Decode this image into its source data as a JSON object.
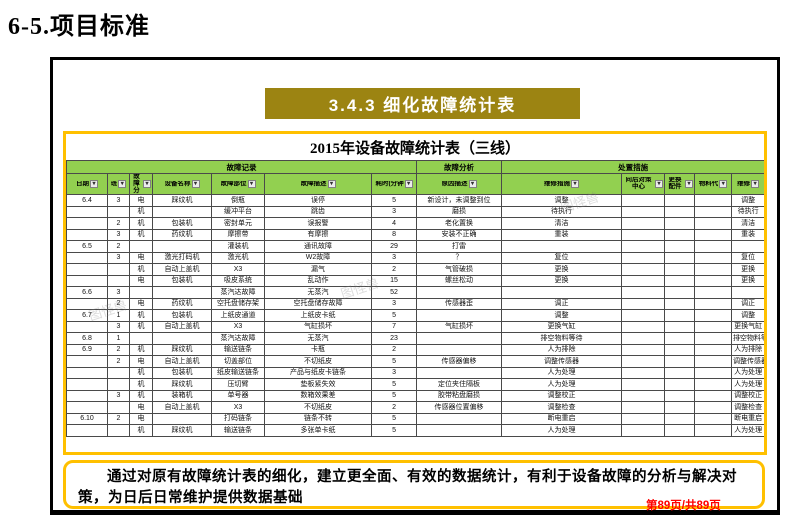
{
  "page": {
    "title": "6-5.项目标准",
    "page_indicator": "第89页/共89页"
  },
  "banner": {
    "label": "3.4.3 细化故障统计表"
  },
  "watermark_text": "图怪兽",
  "colors": {
    "header_green": "#92d050",
    "banner_olive": "#9c8412",
    "gold_border": "#ffc000",
    "page_number_red": "#ff0000"
  },
  "table": {
    "title": "2015年设备故障统计表（三线）",
    "groups": [
      {
        "label": "故障记录",
        "span": 7
      },
      {
        "label": "故障分析",
        "span": 1
      },
      {
        "label": "处置措施",
        "span": 5
      }
    ],
    "columns": [
      {
        "label": "日期"
      },
      {
        "label": "班"
      },
      {
        "label": "故障分"
      },
      {
        "label": "设备名称"
      },
      {
        "label": "故障部位"
      },
      {
        "label": "故障描述"
      },
      {
        "label": "耗时(分钟"
      },
      {
        "label": "原因描述"
      },
      {
        "label": "维修措施"
      },
      {
        "label": "向后对策中心"
      },
      {
        "label": "更换配件"
      },
      {
        "label": "物料代"
      },
      {
        "label": "维修"
      }
    ],
    "rows": [
      [
        "6.4",
        "3",
        "电",
        "踩纹机",
        "倒瓶",
        "误停",
        "5",
        "新设计，未调整到位",
        "调整",
        "",
        "",
        "",
        "调整"
      ],
      [
        "",
        "",
        "机",
        "",
        "缓冲平台",
        "跳齿",
        "3",
        "磨损",
        "待执行",
        "",
        "",
        "",
        "待执行"
      ],
      [
        "",
        "2",
        "机",
        "包装机",
        "密封单元",
        "误报警",
        "4",
        "老化置换",
        "清洁",
        "",
        "",
        "",
        "清洁"
      ],
      [
        "",
        "3",
        "机",
        "药纹机",
        "摩擦带",
        "有摩擦",
        "8",
        "安装不正确",
        "重装",
        "",
        "",
        "",
        "重装"
      ],
      [
        "6.5",
        "2",
        "",
        "",
        "灌装机",
        "通讯故障",
        "29",
        "打雷",
        "",
        "",
        "",
        "",
        ""
      ],
      [
        "",
        "3",
        "电",
        "激光打码机",
        "激光机",
        "W2故障",
        "3",
        "？",
        "复位",
        "",
        "",
        "",
        "复位"
      ],
      [
        "",
        "",
        "机",
        "自动上盖机",
        "X3",
        "漏气",
        "2",
        "气管破损",
        "更换",
        "",
        "",
        "",
        "更换"
      ],
      [
        "",
        "",
        "电",
        "包装机",
        "吸皮系统",
        "乱动作",
        "15",
        "螺丝松动",
        "更换",
        "",
        "",
        "",
        "更换"
      ],
      [
        "6.6",
        "3",
        "",
        "",
        "蒸汽达故障",
        "无蒸汽",
        "52",
        "",
        "",
        "",
        "",
        "",
        ""
      ],
      [
        "",
        "2",
        "电",
        "药纹机",
        "空托盘储存架",
        "空托盘储存故障",
        "3",
        "传感器歪",
        "调正",
        "",
        "",
        "",
        "调正"
      ],
      [
        "6.7",
        "1",
        "机",
        "包装机",
        "上纸皮通道",
        "上纸皮卡纸",
        "5",
        "",
        "调整",
        "",
        "",
        "",
        "调整"
      ],
      [
        "",
        "3",
        "机",
        "自动上盖机",
        "X3",
        "气缸损坏",
        "7",
        "气缸损坏",
        "更换气缸",
        "",
        "",
        "",
        "更换气缸"
      ],
      [
        "6.8",
        "1",
        "",
        "",
        "蒸汽达故障",
        "无蒸汽",
        "23",
        "",
        "排空物料等待",
        "",
        "",
        "",
        "排空物料等待"
      ],
      [
        "6.9",
        "2",
        "机",
        "踩纹机",
        "输送链条",
        "卡瓶",
        "2",
        "",
        "人为排除",
        "",
        "",
        "",
        "人为排除"
      ],
      [
        "",
        "2",
        "电",
        "自动上盖机",
        "切盖部位",
        "不切纸皮",
        "5",
        "传感器偏移",
        "调整传感器",
        "",
        "",
        "",
        "调整传感器"
      ],
      [
        "",
        "",
        "机",
        "包装机",
        "纸皮输送链条",
        "产品与纸皮卡链条",
        "3",
        "",
        "人为处理",
        "",
        "",
        "",
        "人为处理"
      ],
      [
        "",
        "",
        "机",
        "踩纹机",
        "压切臂",
        "垫板紧失效",
        "5",
        "定位夹住隔板",
        "人为处理",
        "",
        "",
        "",
        "人为处理"
      ],
      [
        "",
        "3",
        "机",
        "装箱机",
        "单号器",
        "数箱效果差",
        "5",
        "胶带粘盘磨损",
        "调整校正",
        "",
        "",
        "",
        "调整校正"
      ],
      [
        "",
        "",
        "电",
        "自动上盖机",
        "X3",
        "不切纸皮",
        "2",
        "传感器位置偏移",
        "调整检查",
        "",
        "",
        "",
        "调整检查"
      ],
      [
        "6.10",
        "2",
        "电",
        "",
        "打码链条",
        "链条不转",
        "5",
        "",
        "断电重启",
        "",
        "",
        "",
        "断电重启"
      ],
      [
        "",
        "",
        "机",
        "踩纹机",
        "输送链条",
        "多张单卡纸",
        "5",
        "",
        "人为处理",
        "",
        "",
        "",
        "人为处理"
      ]
    ]
  },
  "summary": {
    "text": "通过对原有故障统计表的细化，建立更全面、有效的数据统计，有利于设备故障的分析与解决对策，为日后日常维护提供数据基础"
  }
}
